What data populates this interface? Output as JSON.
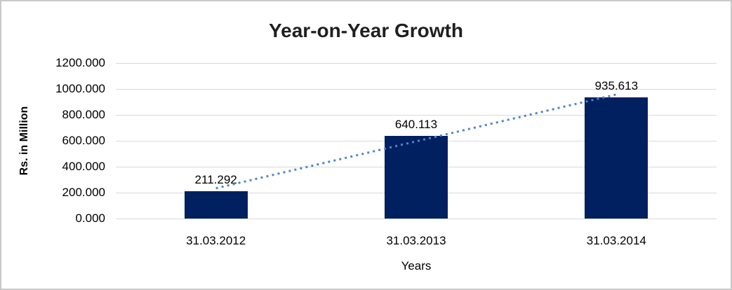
{
  "chart_data": {
    "type": "bar",
    "title": "Year-on-Year Growth",
    "xlabel": "Years",
    "ylabel": "Rs. in Million",
    "categories": [
      "31.03.2012",
      "31.03.2013",
      "31.03.2014"
    ],
    "values": [
      211.292,
      640.113,
      935.613
    ],
    "data_labels": [
      "211.292",
      "640.113",
      "935.613"
    ],
    "y_ticks": [
      "1200.000",
      "1000.000",
      "800.000",
      "600.000",
      "400.000",
      "200.000",
      "0.000"
    ],
    "ylim": [
      0,
      1200
    ],
    "grid": true,
    "legend": "none",
    "bar_color": "#002060",
    "gridline_color": "#d9d9d9",
    "frame_border_color": "#c9c9c9",
    "trendline": {
      "type": "linear",
      "style": "dotted",
      "color": "#4f86c6",
      "fit_values_at_categories": [
        233.512,
        595.673,
        957.834
      ]
    }
  }
}
